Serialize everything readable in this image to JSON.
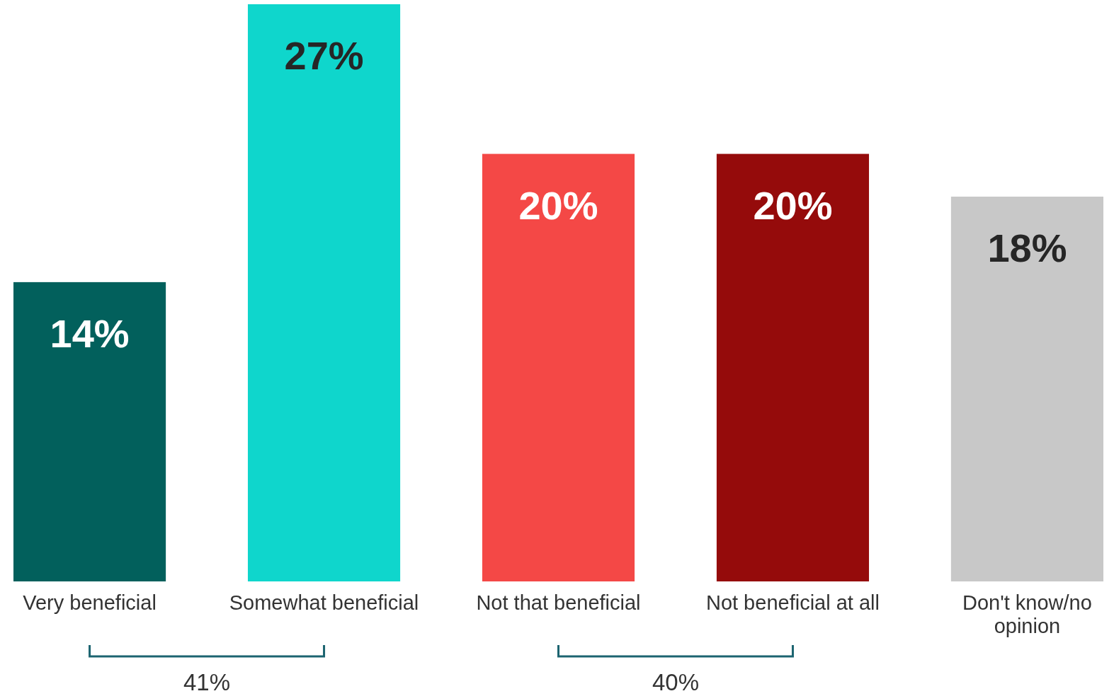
{
  "chart_data": {
    "type": "bar",
    "categories": [
      "Very beneficial",
      "Somewhat beneficial",
      "Not that beneficial",
      "Not beneficial at all",
      "Don't know/no opinion"
    ],
    "values": [
      14,
      27,
      20,
      20,
      18
    ],
    "colors": [
      "#02605c",
      "#0fd6cc",
      "#f44846",
      "#950b0b",
      "#c8c8c8"
    ],
    "ylim": [
      0,
      27
    ],
    "value_labels": [
      "14%",
      "27%",
      "20%",
      "20%",
      "18%"
    ],
    "annotations": [
      "41%",
      "40%"
    ]
  }
}
